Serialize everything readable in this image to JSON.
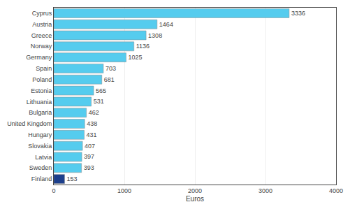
{
  "chart_data": {
    "type": "bar",
    "orientation": "horizontal",
    "categories": [
      "Cyprus",
      "Austria",
      "Greece",
      "Norway",
      "Germany",
      "Spain",
      "Poland",
      "Estonia",
      "Lithuania",
      "Bulgaria",
      "United Kingdom",
      "Hungary",
      "Slovakia",
      "Latvia",
      "Sweden",
      "Finland"
    ],
    "values": [
      3336,
      1464,
      1308,
      1136,
      1025,
      703,
      681,
      565,
      531,
      462,
      438,
      431,
      407,
      397,
      393,
      153
    ],
    "colors": [
      "#55CCEE",
      "#55CCEE",
      "#55CCEE",
      "#55CCEE",
      "#55CCEE",
      "#55CCEE",
      "#55CCEE",
      "#55CCEE",
      "#55CCEE",
      "#55CCEE",
      "#55CCEE",
      "#55CCEE",
      "#55CCEE",
      "#55CCEE",
      "#55CCEE",
      "#1C3F8C"
    ],
    "xlabel": "Euros",
    "xlim": [
      0,
      4000
    ],
    "xticks": [
      0,
      1000,
      2000,
      3000,
      4000
    ],
    "grid": true,
    "data_labels": true
  }
}
